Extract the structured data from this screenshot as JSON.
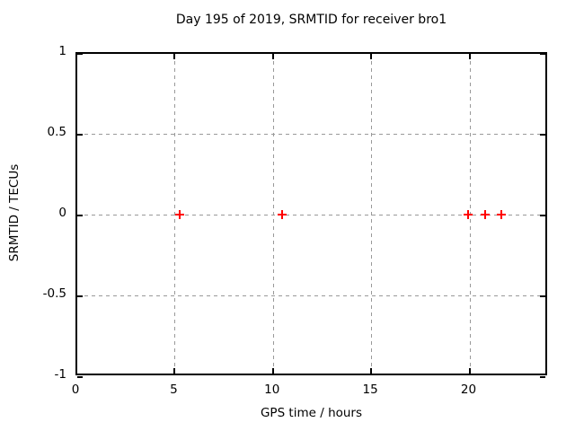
{
  "chart_data": {
    "type": "scatter",
    "title": "Day 195 of 2019, SRMTID for receiver bro1",
    "xlabel": "GPS time / hours",
    "ylabel": "SRMTID / TECUs",
    "xlim": [
      0,
      24
    ],
    "ylim": [
      -1,
      1
    ],
    "xticks": [
      0,
      5,
      10,
      15,
      20
    ],
    "x_tick_labels": [
      "0",
      "5",
      "10",
      "15",
      "20"
    ],
    "yticks": [
      1,
      0.5,
      0,
      -0.5,
      -1
    ],
    "y_tick_labels": [
      "1",
      "0.5",
      "0",
      "-0.5",
      "-1"
    ],
    "grid": true,
    "grid_style": "dashed",
    "legend": false,
    "series": [
      {
        "name": "SRMTID",
        "marker": "plus",
        "color": "#ff0000",
        "x": [
          5.27,
          10.48,
          19.93,
          20.8,
          21.62
        ],
        "y": [
          0,
          0,
          0,
          0,
          0
        ]
      }
    ],
    "colors": {
      "background": "#ffffff",
      "axis": "#000000",
      "grid": "#999999",
      "text": "#000000",
      "marker": "#ff0000"
    }
  }
}
